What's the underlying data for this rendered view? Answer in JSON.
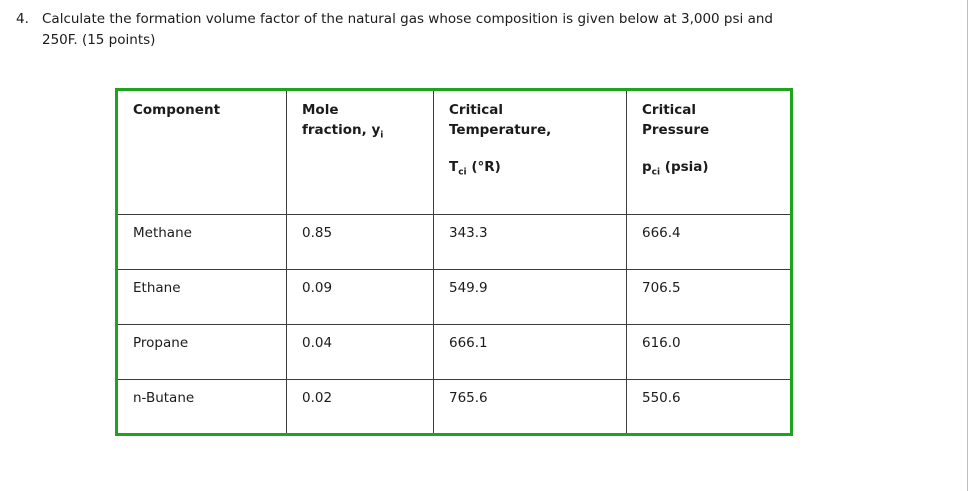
{
  "colors": {
    "table_border_green": "#1ea31e",
    "cell_border_gray": "#3c3c3c",
    "text": "#1b1b1b",
    "background": "#ffffff"
  },
  "question": {
    "number": "4.",
    "text_line1": "Calculate the formation volume factor of the natural gas whose composition is given below at 3,000 psi and",
    "text_line2": "250F. (15 points)"
  },
  "table": {
    "headers": {
      "component": "Component",
      "mole": {
        "line1": "Mole",
        "line2_main": "fraction, y",
        "line2_sub": "i"
      },
      "temperature": {
        "line1": "Critical",
        "line2": "Temperature,",
        "symbol_main": "T",
        "symbol_sub": "ci",
        "symbol_unit": " (°R)"
      },
      "pressure": {
        "line1": "Critical",
        "line2": "Pressure",
        "symbol_main": "p",
        "symbol_sub": "ci",
        "symbol_unit": " (psia)"
      }
    },
    "rows": [
      {
        "component": "Methane",
        "mole_fraction": "0.85",
        "critical_temperature": "343.3",
        "critical_pressure": "666.4"
      },
      {
        "component": "Ethane",
        "mole_fraction": "0.09",
        "critical_temperature": "549.9",
        "critical_pressure": "706.5"
      },
      {
        "component": "Propane",
        "mole_fraction": "0.04",
        "critical_temperature": "666.1",
        "critical_pressure": "616.0"
      },
      {
        "component": "n-Butane",
        "mole_fraction": "0.02",
        "critical_temperature": "765.6",
        "critical_pressure": "550.6"
      }
    ]
  }
}
